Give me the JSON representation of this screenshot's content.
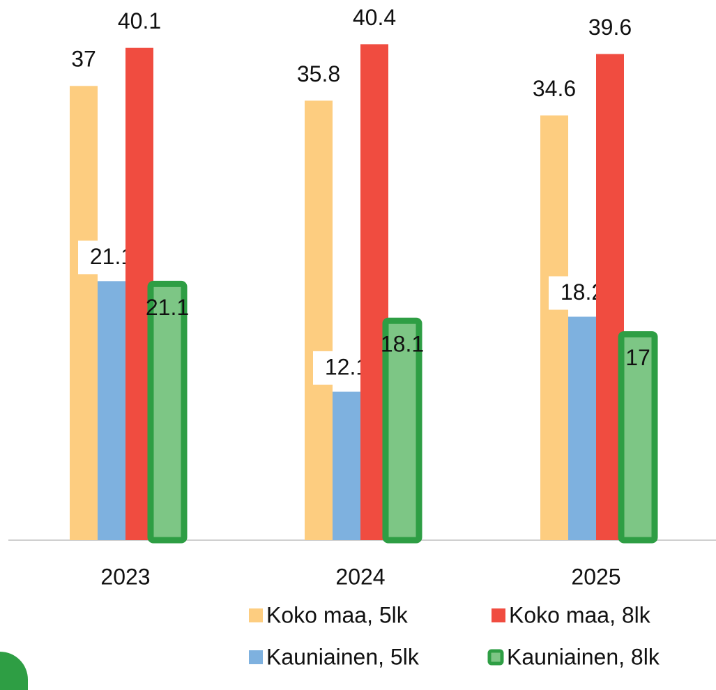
{
  "chart_data": {
    "type": "bar",
    "categories": [
      "2023",
      "2024",
      "2025"
    ],
    "series": [
      {
        "name": "Koko maa, 5lk",
        "color": "#fdcd80",
        "values": [
          37,
          35.8,
          34.6
        ]
      },
      {
        "name": "Kauniainen, 5lk",
        "color": "#7eb1df",
        "values": [
          21.1,
          12.1,
          18.2
        ]
      },
      {
        "name": "Koko maa, 8lk",
        "color": "#f04c40",
        "values": [
          40.1,
          40.4,
          39.6
        ]
      },
      {
        "name": "Kauniainen, 8lk",
        "color": "#2e9e44",
        "values": [
          21.1,
          18.1,
          17
        ]
      }
    ],
    "ylim": [
      0,
      44
    ]
  }
}
